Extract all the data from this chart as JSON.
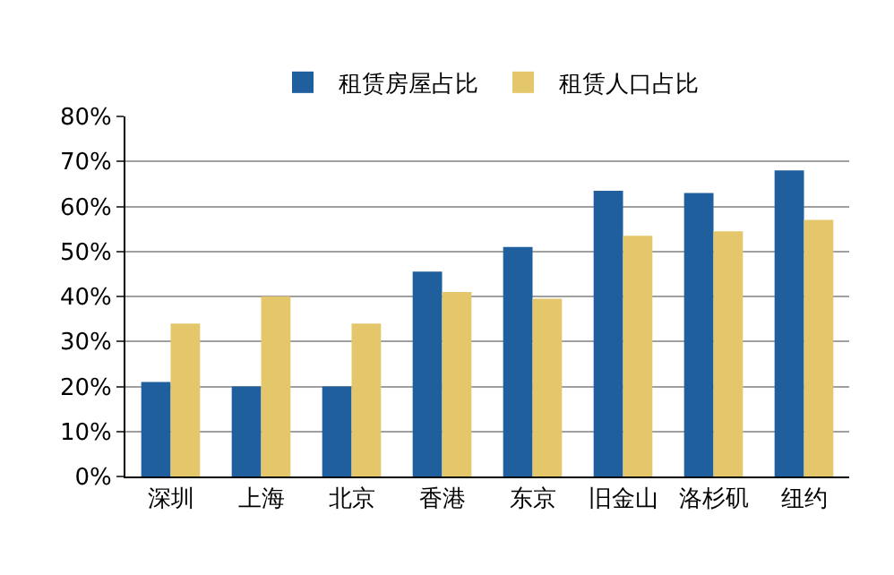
{
  "chart_data": {
    "type": "bar",
    "categories": [
      "深圳",
      "上海",
      "北京",
      "香港",
      "东京",
      "旧金山",
      "洛杉矶",
      "纽约"
    ],
    "series": [
      {
        "name": "租赁房屋占比",
        "color": "#1f5f9e",
        "values": [
          21,
          20,
          20,
          45.5,
          51,
          63.5,
          63,
          68
        ]
      },
      {
        "name": "租赁人口占比",
        "color": "#e5c76b",
        "values": [
          34,
          40,
          34,
          41,
          39.5,
          53.5,
          54.5,
          57
        ]
      }
    ],
    "ylim": [
      0,
      80
    ],
    "yticks": [
      {
        "value": 0,
        "label": "0%"
      },
      {
        "value": 10,
        "label": "10%"
      },
      {
        "value": 20,
        "label": "20%"
      },
      {
        "value": 30,
        "label": "30%"
      },
      {
        "value": 40,
        "label": "40%"
      },
      {
        "value": 50,
        "label": "50%"
      },
      {
        "value": 60,
        "label": "60%"
      },
      {
        "value": 70,
        "label": "70%"
      },
      {
        "value": 80,
        "label": "80%"
      }
    ],
    "grid": "y",
    "legend": "top"
  }
}
